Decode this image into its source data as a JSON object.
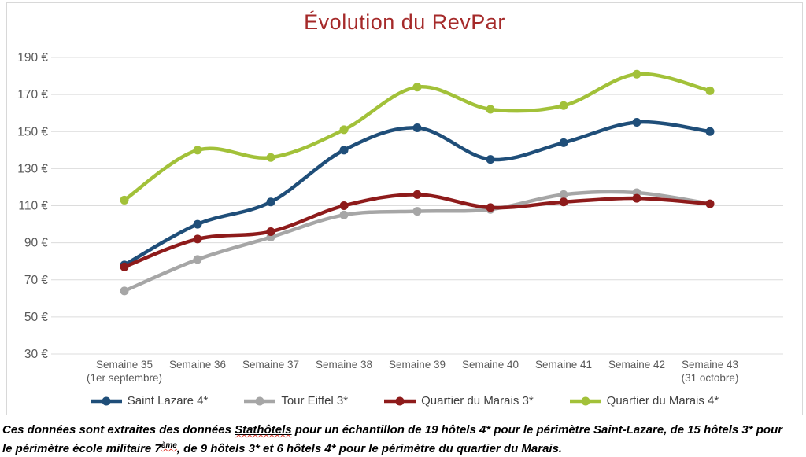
{
  "chart_data": {
    "type": "line",
    "title": "Évolution du RevPar",
    "smooth": true,
    "grid": true,
    "legend_position": "bottom",
    "ylim": [
      30,
      190
    ],
    "ytick_step": 20,
    "y_ticks": [
      "190 €",
      "170 €",
      "150 €",
      "130 €",
      "110 €",
      "90 €",
      "70 €",
      "50 €",
      "30 €"
    ],
    "categories": [
      {
        "label": "Semaine 35",
        "sublabel": "(1er septembre)"
      },
      {
        "label": "Semaine 36",
        "sublabel": ""
      },
      {
        "label": "Semaine 37",
        "sublabel": ""
      },
      {
        "label": "Semaine 38",
        "sublabel": ""
      },
      {
        "label": "Semaine 39",
        "sublabel": ""
      },
      {
        "label": "Semaine 40",
        "sublabel": ""
      },
      {
        "label": "Semaine 41",
        "sublabel": ""
      },
      {
        "label": "Semaine 42",
        "sublabel": ""
      },
      {
        "label": "Semaine 43",
        "sublabel": "(31 octobre)"
      }
    ],
    "series": [
      {
        "name": "Saint Lazare 4*",
        "color": "#1f4e79",
        "values": [
          78,
          100,
          112,
          140,
          152,
          135,
          144,
          155,
          150
        ]
      },
      {
        "name": "Tour Eiffel 3*",
        "color": "#a6a6a6",
        "values": [
          64,
          81,
          93,
          105,
          107,
          108,
          116,
          117,
          111
        ]
      },
      {
        "name": "Quartier du Marais 3*",
        "color": "#8e1b1b",
        "values": [
          77,
          92,
          96,
          110,
          116,
          109,
          112,
          114,
          111
        ]
      },
      {
        "name": "Quartier du Marais 4*",
        "color": "#a2c139",
        "values": [
          113,
          140,
          136,
          151,
          174,
          162,
          164,
          181,
          172
        ]
      }
    ]
  },
  "footer": {
    "line1_pre": "Ces données sont extraites des données ",
    "line1_underlined": "Stathôtels",
    "line1_post": " pour un échantillon de 19 hôtels 4* pour le périmètre Saint-Lazare, de 15 hôtels 3* pour",
    "line2_pre": "le périmètre école militaire 7",
    "line2_sup": "ème",
    "line2_post": ", de 9 hôtels 3* et 6 hôtels 4* pour le périmètre du quartier du Marais."
  }
}
